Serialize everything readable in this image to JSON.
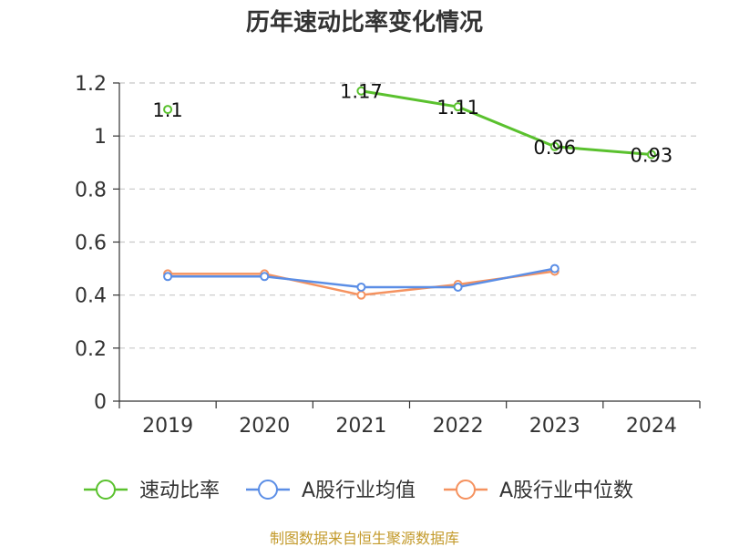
{
  "chart_data": {
    "type": "line",
    "title": "历年速动比率变化情况",
    "categories": [
      "2019",
      "2020",
      "2021",
      "2022",
      "2023",
      "2024"
    ],
    "ylim": [
      0,
      1.2
    ],
    "yticks": [
      "0",
      "0.2",
      "0.4",
      "0.6",
      "0.8",
      "1",
      "1.2"
    ],
    "ytick_values": [
      0,
      0.2,
      0.4,
      0.6,
      0.8,
      1,
      1.2
    ],
    "grid": true,
    "legend_position": "bottom",
    "series": [
      {
        "name": "速动比率",
        "color": "#5ac12e",
        "values": [
          1.1,
          null,
          1.17,
          1.11,
          0.96,
          0.93
        ],
        "labels": [
          "1.1",
          "",
          "1.17",
          "1.11",
          "0.96",
          "0.93"
        ]
      },
      {
        "name": "A股行业均值",
        "color": "#5b8ee6",
        "values": [
          0.47,
          0.47,
          0.43,
          0.43,
          0.5,
          null
        ]
      },
      {
        "name": "A股行业中位数",
        "color": "#f5925f",
        "values": [
          0.48,
          0.48,
          0.4,
          0.44,
          0.49,
          null
        ]
      }
    ],
    "source": "制图数据来自恒生聚源数据库"
  }
}
